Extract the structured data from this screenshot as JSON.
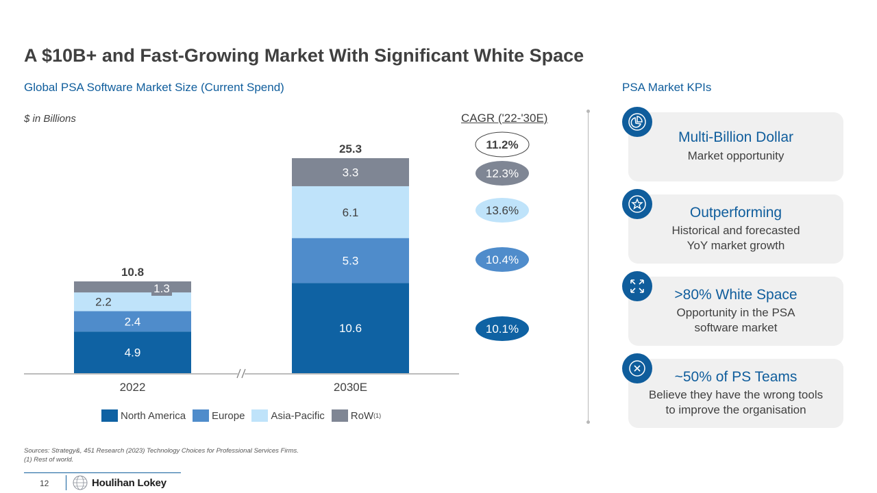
{
  "title": "A $10B+ and Fast-Growing Market With Significant White Space",
  "subtitle": "Global PSA Software Market Size (Current Spend)",
  "units_note": "$ in Billions",
  "cagr_title": "CAGR ('22-'30E)",
  "colors": {
    "north_america": "#0f62a3",
    "europe": "#4f8ccb",
    "asia_pacific": "#bfe3fa",
    "row": "#7f8694",
    "accent": "#0f5d9c"
  },
  "chart_data": {
    "type": "bar",
    "stacked": true,
    "categories": [
      "2022",
      "2030E"
    ],
    "series": [
      {
        "name": "North America",
        "values": [
          4.9,
          10.6
        ],
        "color": "#0f62a3"
      },
      {
        "name": "Europe",
        "values": [
          2.4,
          5.3
        ],
        "color": "#4f8ccb"
      },
      {
        "name": "Asia-Pacific",
        "values": [
          2.2,
          6.1
        ],
        "color": "#bfe3fa"
      },
      {
        "name": "RoW",
        "values": [
          1.3,
          3.3
        ],
        "color": "#7f8694"
      }
    ],
    "totals": [
      "10.8",
      "25.3"
    ],
    "axis_break": true,
    "cagr": {
      "total": "11.2%",
      "row": "12.3%",
      "asia_pacific": "13.6%",
      "europe": "10.4%",
      "north_america": "10.1%"
    }
  },
  "legend": {
    "north_america": "North America",
    "europe": "Europe",
    "asia_pacific": "Asia-Pacific",
    "row": "RoW",
    "row_sup": "(1)"
  },
  "kpi": {
    "title": "PSA Market KPIs",
    "cards": [
      {
        "heading": "Multi-Billion Dollar",
        "lines": [
          "Market opportunity"
        ],
        "icon": "pie-chart-icon"
      },
      {
        "heading": "Outperforming",
        "lines": [
          "Historical and forecasted",
          "YoY market growth"
        ],
        "icon": "star-badge-icon"
      },
      {
        "heading": ">80% White Space",
        "lines": [
          "Opportunity in the PSA",
          "software market"
        ],
        "icon": "expand-arrows-icon"
      },
      {
        "heading": "~50% of PS Teams",
        "lines": [
          "Believe they have the wrong tools",
          "to improve the organisation"
        ],
        "icon": "x-circle-icon"
      }
    ]
  },
  "sources": {
    "line1": "Sources: Strategy&, 451 Research (2023) Technology Choices for Professional Services Firms.",
    "line2": "(1) Rest of world."
  },
  "footer": {
    "page_number": "12",
    "brand": "Houlihan Lokey"
  }
}
